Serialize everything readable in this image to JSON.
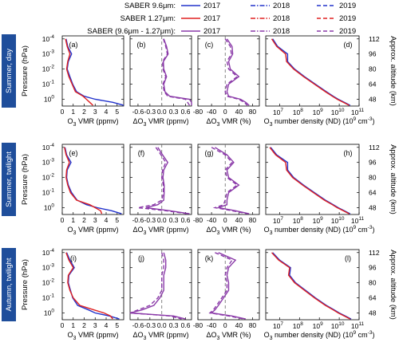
{
  "legend": {
    "rows": [
      {
        "label": "SABER 9.6μm:",
        "color": "#2233cc"
      },
      {
        "label": "SABER 1.27μm:",
        "color": "#e02020"
      },
      {
        "label": "SABER (9.6μm - 1.27μm):",
        "color": "#8a3aa8"
      }
    ],
    "years": [
      "2017",
      "2018",
      "2019"
    ],
    "styles": [
      "solid",
      "dashdot",
      "dashed"
    ]
  },
  "rows": [
    {
      "label": "Summer, day",
      "color": "#1f4e9b"
    },
    {
      "label": "Summer, twilight",
      "color": "#1f4e9b"
    },
    {
      "label": "Autumn, twilight",
      "color": "#1f4e9b"
    }
  ],
  "axes": {
    "ylabel": "Pressure (hPa)",
    "y2label": "Approx. altitude (km)",
    "ytick_exps": [
      "-4",
      "-3",
      "-2",
      "-1",
      "0"
    ],
    "alt_ticks": [
      "112",
      "96",
      "80",
      "64",
      "48"
    ],
    "col_xlabels": [
      {
        "pre": "O",
        "sub": "3",
        "post": " VMR (ppmv)"
      },
      {
        "pre": "ΔO",
        "sub": "3",
        "post": " VMR (ppmv)"
      },
      {
        "pre": "ΔO",
        "sub": "3",
        "post": " VMR (%)"
      },
      {
        "pre": "O",
        "sub": "3",
        "post": " number density (ND) (10",
        "sup": "9",
        "post2": " cm",
        "sup2": "-3",
        "post3": ")"
      }
    ],
    "col_ticks": [
      [
        "0",
        "1",
        "2",
        "3",
        "4",
        "5"
      ],
      [
        "-0.6",
        "-0.3",
        "0.0",
        "0.3",
        "0.6"
      ],
      [
        "-80",
        "-40",
        "0",
        "40",
        "80"
      ],
      [
        {
          "b": "10",
          "e": "7"
        },
        {
          "b": "10",
          "e": "8"
        },
        {
          "b": "10",
          "e": "9"
        },
        {
          "b": "10",
          "e": "10"
        },
        {
          "b": "10",
          "e": "11"
        }
      ]
    ]
  },
  "panel_labels": [
    "(a)",
    "(b)",
    "(c)",
    "(d)",
    "(e)",
    "(f)",
    "(g)",
    "(h)",
    "(i)",
    "(j)",
    "(k)",
    "(l)"
  ],
  "chart_data": {
    "type": "line",
    "y_scale": "log_pressure_hPa",
    "ylim_hPa": [
      3,
      0.0001
    ],
    "xlims": [
      [
        0,
        5.6
      ],
      [
        -0.8,
        0.75
      ],
      [
        -80,
        100
      ],
      [
        6.3,
        11
      ]
    ],
    "x_scale_col4": "log10_number_density",
    "pressure_levels_log10": [
      -4.0,
      -3.5,
      -3.0,
      -2.5,
      -2.0,
      -1.5,
      -1.0,
      -0.5,
      -0.2,
      0.0,
      0.2,
      0.4
    ],
    "panels": [
      {
        "id": "a",
        "type": "vmr",
        "series": [
          {
            "color": "#2233cc",
            "values": [
              0.35,
              0.5,
              0.85,
              0.55,
              0.45,
              0.7,
              0.95,
              1.3,
              2.0,
              3.0,
              4.6,
              5.6
            ]
          },
          {
            "color": "#e02020",
            "values": [
              0.3,
              0.45,
              0.7,
              0.5,
              0.4,
              0.6,
              0.9,
              1.2,
              1.9,
              2.2,
              2.5,
              2.8
            ]
          }
        ]
      },
      {
        "id": "b",
        "type": "diff_vmr",
        "series": [
          {
            "color": "#8a3aa8",
            "values": [
              0.05,
              0.12,
              0.16,
              0.04,
              0.05,
              0.12,
              0.05,
              0.08,
              0.2,
              0.7,
              0.75,
              0.75
            ]
          },
          {
            "color": "#8a3aa8",
            "style": "dashed",
            "values": [
              0.04,
              0.1,
              0.14,
              0.02,
              0.03,
              0.1,
              0.03,
              0.06,
              0.15,
              0.6,
              0.65,
              0.7
            ]
          }
        ]
      },
      {
        "id": "c",
        "type": "diff_pct",
        "series": [
          {
            "color": "#8a3aa8",
            "values": [
              5,
              20,
              22,
              10,
              15,
              40,
              10,
              5,
              10,
              45,
              60,
              70
            ]
          },
          {
            "color": "#8a3aa8",
            "style": "dashed",
            "values": [
              0,
              15,
              18,
              5,
              10,
              35,
              5,
              0,
              5,
              40,
              55,
              65
            ]
          }
        ]
      },
      {
        "id": "d",
        "type": "nd",
        "series": [
          {
            "color": "#2233cc",
            "values": [
              6.65,
              6.9,
              7.4,
              7.4,
              7.75,
              8.25,
              8.8,
              9.35,
              9.7,
              9.95,
              10.25,
              10.55
            ]
          },
          {
            "color": "#e02020",
            "values": [
              6.6,
              6.85,
              7.3,
              7.35,
              7.7,
              8.2,
              8.75,
              9.3,
              9.65,
              9.9,
              10.2,
              10.5
            ]
          }
        ]
      },
      {
        "id": "e",
        "type": "vmr",
        "series": [
          {
            "color": "#2233cc",
            "values": [
              0.25,
              0.4,
              0.8,
              0.45,
              0.4,
              0.55,
              0.85,
              1.35,
              2.2,
              3.2,
              4.5,
              5.4
            ]
          },
          {
            "color": "#e02020",
            "values": [
              0.2,
              0.35,
              0.65,
              0.4,
              0.35,
              0.5,
              0.75,
              1.3,
              2.5,
              3.0,
              3.5,
              3.6
            ]
          }
        ]
      },
      {
        "id": "f",
        "type": "diff_vmr",
        "series": [
          {
            "color": "#8a3aa8",
            "values": [
              -0.1,
              0.02,
              0.15,
              0.05,
              0.03,
              0.06,
              0.06,
              0.05,
              -0.1,
              -0.4,
              0.2,
              0.7
            ]
          },
          {
            "color": "#8a3aa8",
            "style": "dashed",
            "values": [
              -0.15,
              -0.02,
              0.1,
              0.02,
              0.0,
              0.04,
              0.04,
              0.0,
              -0.2,
              -0.6,
              0.1,
              0.65
            ]
          }
        ]
      },
      {
        "id": "g",
        "type": "diff_pct",
        "series": [
          {
            "color": "#8a3aa8",
            "values": [
              -30,
              5,
              25,
              5,
              10,
              40,
              10,
              5,
              5,
              -20,
              30,
              70
            ]
          },
          {
            "color": "#8a3aa8",
            "style": "dashed",
            "values": [
              -40,
              0,
              20,
              0,
              5,
              35,
              5,
              0,
              -5,
              -30,
              20,
              65
            ]
          }
        ]
      },
      {
        "id": "h",
        "type": "nd",
        "series": [
          {
            "color": "#2233cc",
            "values": [
              6.55,
              6.85,
              7.4,
              7.4,
              7.7,
              8.2,
              8.75,
              9.3,
              9.7,
              9.95,
              10.25,
              10.55
            ]
          },
          {
            "color": "#e02020",
            "values": [
              6.5,
              6.8,
              7.3,
              7.35,
              7.65,
              8.15,
              8.7,
              9.25,
              9.65,
              9.9,
              10.2,
              10.5
            ]
          }
        ]
      },
      {
        "id": "i",
        "type": "vmr",
        "series": [
          {
            "color": "#2233cc",
            "values": [
              0.4,
              0.7,
              1.1,
              0.6,
              0.55,
              0.75,
              0.95,
              1.4,
              2.4,
              3.0,
              4.3,
              5.2
            ]
          },
          {
            "color": "#e02020",
            "values": [
              0.35,
              0.6,
              1.0,
              0.55,
              0.5,
              0.7,
              1.0,
              1.6,
              2.9,
              3.8,
              4.4,
              4.6
            ]
          }
        ]
      },
      {
        "id": "j",
        "type": "diff_vmr",
        "series": [
          {
            "color": "#8a3aa8",
            "values": [
              0.05,
              0.1,
              0.1,
              0.05,
              0.05,
              0.05,
              -0.05,
              -0.2,
              -0.5,
              -0.8,
              0.3,
              0.6
            ]
          },
          {
            "color": "#8a3aa8",
            "style": "dashed",
            "values": [
              0.0,
              0.05,
              0.05,
              0.0,
              0.0,
              0.0,
              -0.1,
              -0.3,
              -0.6,
              -0.8,
              0.2,
              0.5
            ]
          }
        ]
      },
      {
        "id": "k",
        "type": "diff_pct",
        "series": [
          {
            "color": "#8a3aa8",
            "values": [
              -20,
              30,
              10,
              5,
              10,
              10,
              -5,
              -20,
              -30,
              -40,
              20,
              60
            ]
          },
          {
            "color": "#8a3aa8",
            "style": "dashed",
            "values": [
              -30,
              20,
              5,
              0,
              5,
              5,
              -10,
              -25,
              -35,
              -45,
              10,
              55
            ]
          }
        ]
      },
      {
        "id": "l",
        "type": "nd",
        "series": [
          {
            "color": "#2233cc",
            "values": [
              6.65,
              7.0,
              7.55,
              7.5,
              7.8,
              8.3,
              8.8,
              9.35,
              9.75,
              10.0,
              10.3,
              10.6
            ]
          },
          {
            "color": "#e02020",
            "values": [
              6.6,
              6.95,
              7.5,
              7.45,
              7.75,
              8.25,
              8.75,
              9.3,
              9.7,
              9.95,
              10.25,
              10.55
            ]
          }
        ]
      }
    ]
  }
}
